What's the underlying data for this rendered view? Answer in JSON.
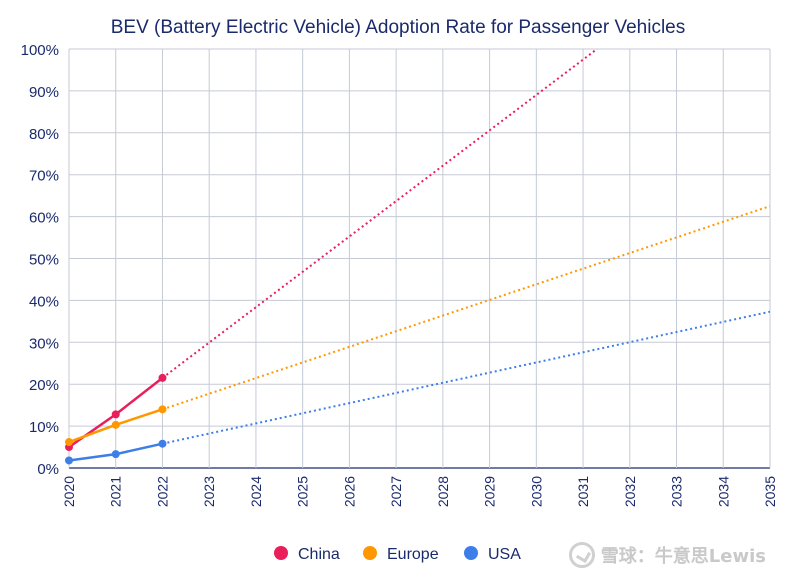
{
  "chart_data": {
    "type": "line",
    "title": "BEV (Battery Electric Vehicle) Adoption Rate for Passenger Vehicles",
    "xlabel": "",
    "ylabel": "",
    "x_ticks": [
      "2020",
      "2021",
      "2022",
      "2023",
      "2024",
      "2025",
      "2026",
      "2027",
      "2028",
      "2029",
      "2030",
      "2031",
      "2032",
      "2033",
      "2034",
      "2035"
    ],
    "y_ticks": [
      "0%",
      "10%",
      "20%",
      "30%",
      "40%",
      "50%",
      "60%",
      "70%",
      "80%",
      "90%",
      "100%"
    ],
    "xlim": [
      2020,
      2035
    ],
    "ylim": [
      0,
      100
    ],
    "grid": true,
    "legend_position": "bottom",
    "series": [
      {
        "name": "China",
        "color": "#e91e5a",
        "x": [
          2020,
          2021,
          2022
        ],
        "values": [
          5.0,
          12.8,
          21.5
        ],
        "projection": {
          "x": [
            2022,
            2031.3
          ],
          "values": [
            21.5,
            100
          ]
        }
      },
      {
        "name": "Europe",
        "color": "#ff9800",
        "x": [
          2020,
          2021,
          2022
        ],
        "values": [
          6.2,
          10.3,
          14.0
        ],
        "projection": {
          "x": [
            2022,
            2035
          ],
          "values": [
            14.0,
            62.5
          ]
        }
      },
      {
        "name": "USA",
        "color": "#3d7ee8",
        "x": [
          2020,
          2021,
          2022
        ],
        "values": [
          1.8,
          3.3,
          5.8
        ],
        "projection": {
          "x": [
            2022,
            2035
          ],
          "values": [
            5.8,
            37.3
          ]
        }
      }
    ]
  },
  "watermark": {
    "text": "雪球：牛意思Lewis"
  }
}
